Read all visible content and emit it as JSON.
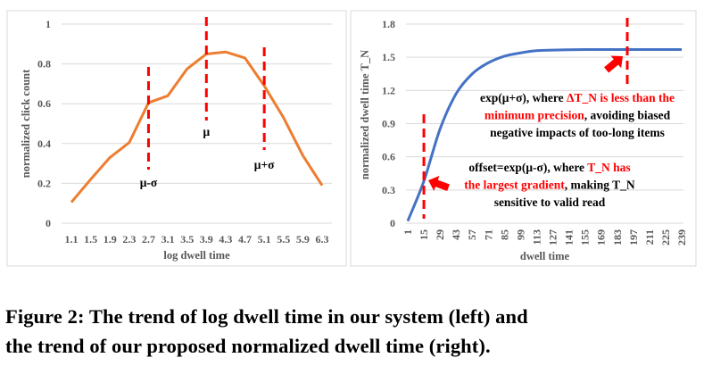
{
  "chart_data": [
    {
      "type": "line",
      "xlabel": "log dwell time",
      "ylabel": "normalized click count",
      "categories": [
        "1.1",
        "1.5",
        "1.9",
        "2.3",
        "2.7",
        "3.1",
        "3.5",
        "3.9",
        "4.3",
        "4.7",
        "5.1",
        "5.5",
        "5.9",
        "6.3"
      ],
      "values": [
        0.105,
        0.22,
        0.33,
        0.405,
        0.605,
        0.64,
        0.775,
        0.85,
        0.86,
        0.83,
        0.69,
        0.53,
        0.34,
        0.19
      ],
      "ylim": [
        0,
        1
      ],
      "yticks": [
        "0",
        "0.2",
        "0.4",
        "0.6",
        "0.8",
        "1"
      ],
      "grid": true,
      "line_color": "#ED7D31",
      "markers": [
        {
          "label": "μ-σ",
          "at_category": "2.7"
        },
        {
          "label": "μ",
          "at_category": "3.9"
        },
        {
          "label": "μ+σ",
          "at_category": "5.1"
        }
      ],
      "marker_color": "#FF0000"
    },
    {
      "type": "line",
      "xlabel": "dwell time",
      "ylabel": "normalized dwell time T_N",
      "categories": [
        "1",
        "15",
        "29",
        "43",
        "57",
        "71",
        "85",
        "99",
        "113",
        "127",
        "141",
        "155",
        "169",
        "183",
        "197",
        "211",
        "225",
        "239"
      ],
      "values": [
        0.02,
        0.38,
        0.85,
        1.17,
        1.35,
        1.45,
        1.51,
        1.54,
        1.56,
        1.565,
        1.568,
        1.57,
        1.57,
        1.57,
        1.57,
        1.57,
        1.57,
        1.57
      ],
      "ylim": [
        0,
        1.8
      ],
      "yticks": [
        "0",
        "0.3",
        "0.6",
        "0.9",
        "1.2",
        "1.5",
        "1.8"
      ],
      "grid": true,
      "line_color": "#4472C4",
      "marker_color": "#FF0000",
      "annotations": [
        {
          "lines": [
            [
              {
                "t": "exp(μ+σ), where ",
                "red": false
              },
              {
                "t": "ΔT_N is less than the",
                "red": true
              }
            ],
            [
              {
                "t": "minimum precision",
                "red": true
              },
              {
                "t": ", avoiding biased",
                "red": false
              }
            ],
            [
              {
                "t": "negative impacts of too-long items",
                "red": false
              }
            ]
          ]
        },
        {
          "lines": [
            [
              {
                "t": "offset=exp(μ-σ), where ",
                "red": false
              },
              {
                "t": "T_N has",
                "red": true
              }
            ],
            [
              {
                "t": "the largest gradient",
                "red": true
              },
              {
                "t": ", making T_N",
                "red": false
              }
            ],
            [
              {
                "t": "sensitive to valid read",
                "red": false
              }
            ]
          ]
        }
      ]
    }
  ],
  "caption": {
    "line1": "Figure 2: The trend of log dwell time in our system (left) and",
    "line2": "the trend of our proposed normalized dwell time (right)."
  }
}
